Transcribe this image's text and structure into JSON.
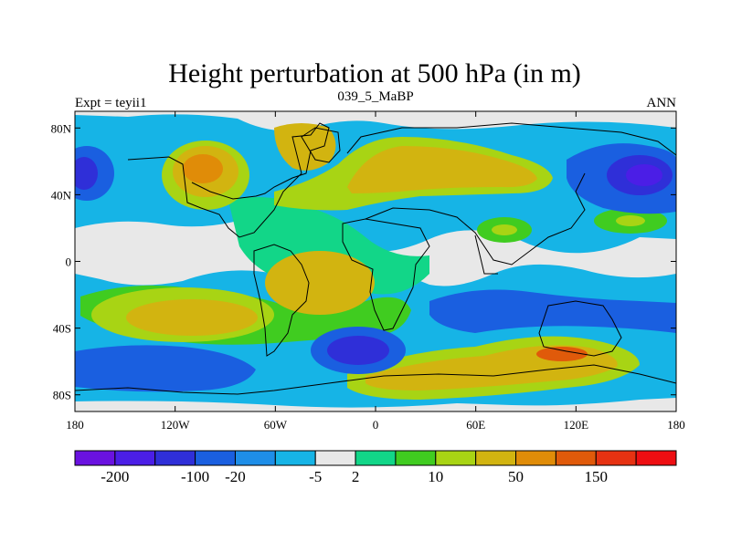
{
  "chart_data": {
    "type": "heatmap",
    "title": "Height perturbation at 500 hPa (in m)",
    "left_string": "Expt = teyii1",
    "center_string": "039_5_MaBP",
    "right_string": "ANN",
    "xlim": [
      -180,
      180
    ],
    "ylim": [
      -90,
      90
    ],
    "x_ticks": [
      {
        "value": -180,
        "label": "180"
      },
      {
        "value": -120,
        "label": "120W"
      },
      {
        "value": -60,
        "label": "60W"
      },
      {
        "value": 0,
        "label": "0"
      },
      {
        "value": 60,
        "label": "60E"
      },
      {
        "value": 120,
        "label": "120E"
      },
      {
        "value": 180,
        "label": "180"
      }
    ],
    "y_ticks": [
      {
        "value": 80,
        "label": "80N"
      },
      {
        "value": 40,
        "label": "40N"
      },
      {
        "value": 0,
        "label": "0"
      },
      {
        "value": -40,
        "label": "40S"
      },
      {
        "value": -80,
        "label": "80S"
      }
    ],
    "colorbar": {
      "colors": [
        "#6a12e0",
        "#4b1ee6",
        "#2f2fd8",
        "#1a5fe0",
        "#1e8ee8",
        "#16b4e6",
        "#e8e8e8",
        "#12d688",
        "#40cc20",
        "#a8d414",
        "#d2b410",
        "#e08c08",
        "#e05a0a",
        "#e63212",
        "#ee0e12"
      ],
      "labels": [
        {
          "after": 0,
          "text": "-200"
        },
        {
          "after": 2,
          "text": "-100"
        },
        {
          "after": 3,
          "text": "-20"
        },
        {
          "after": 5,
          "text": "-5"
        },
        {
          "after": 6,
          "text": "2"
        },
        {
          "after": 8,
          "text": "10"
        },
        {
          "after": 10,
          "text": "50"
        },
        {
          "after": 12,
          "text": "150"
        }
      ]
    },
    "regions": [
      {
        "name": "north-pacific-high",
        "lon": -130,
        "lat": 42,
        "color": "#a8d414"
      },
      {
        "name": "north-pacific-high-core",
        "lon": -125,
        "lat": 50,
        "color": "#e08c08"
      },
      {
        "name": "eurasia-high",
        "lon": 30,
        "lat": 52,
        "color": "#d2b410"
      },
      {
        "name": "south-pacific-high",
        "lon": -100,
        "lat": -30,
        "color": "#d2b410"
      },
      {
        "name": "south-indian-high",
        "lon": 90,
        "lat": -60,
        "color": "#d2b410"
      },
      {
        "name": "south-indian-high-core",
        "lon": 115,
        "lat": -58,
        "color": "#e05a0a"
      },
      {
        "name": "north-pacific-low",
        "lon": -170,
        "lat": 52,
        "color": "#2f2fd8"
      },
      {
        "name": "north-pacific-low-east",
        "lon": 165,
        "lat": 52,
        "color": "#4b1ee6"
      },
      {
        "name": "south-atlantic-low",
        "lon": -20,
        "lat": -52,
        "color": "#2f2fd8"
      },
      {
        "name": "southeast-pacific-low",
        "lon": -145,
        "lat": -65,
        "color": "#1a5fe0"
      }
    ]
  }
}
